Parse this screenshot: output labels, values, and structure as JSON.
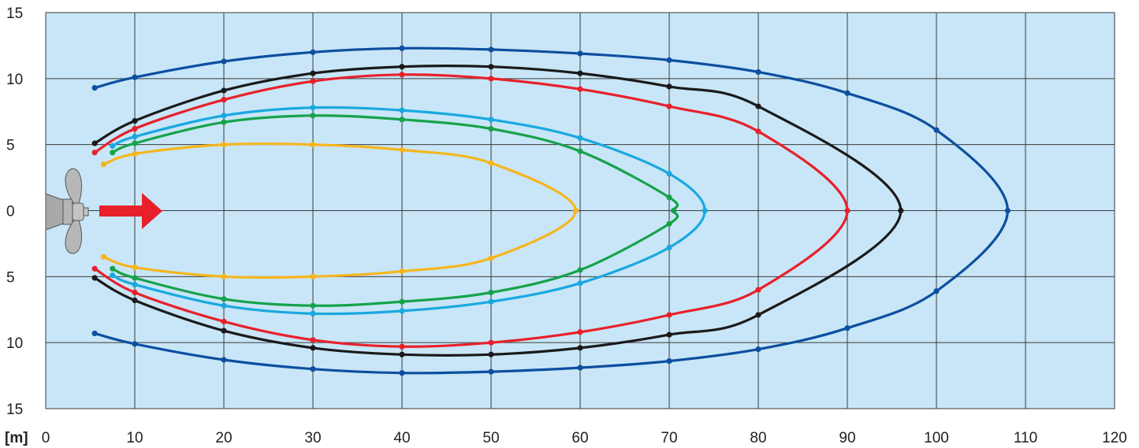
{
  "chart_data": {
    "type": "line",
    "xlabel": "[m]",
    "ylabel": "",
    "xlim": [
      0,
      120
    ],
    "ylim": [
      -15,
      15
    ],
    "x_ticks": [
      "0",
      "10",
      "20",
      "30",
      "40",
      "50",
      "60",
      "70",
      "80",
      "90",
      "100",
      "110",
      "120"
    ],
    "y_ticks": [
      "15",
      "10",
      "5",
      "0",
      "5",
      "10",
      "15"
    ],
    "y_tick_values": [
      15,
      10,
      5,
      0,
      -5,
      -10,
      -15
    ],
    "grid": true,
    "legend": "none",
    "plot_background": "#c8e6f7",
    "series": [
      {
        "color": "#0d4fa0",
        "upper": [
          [
            5.5,
            9.3
          ],
          [
            10,
            10.1
          ],
          [
            20,
            11.3
          ],
          [
            30,
            12.0
          ],
          [
            40,
            12.3
          ],
          [
            50,
            12.2
          ],
          [
            60,
            11.9
          ],
          [
            70,
            11.4
          ],
          [
            80,
            10.5
          ],
          [
            90,
            8.9
          ],
          [
            100,
            6.1
          ],
          [
            108,
            0
          ]
        ],
        "lower": [
          [
            5.5,
            -9.3
          ],
          [
            10,
            -10.1
          ],
          [
            20,
            -11.3
          ],
          [
            30,
            -12.0
          ],
          [
            40,
            -12.3
          ],
          [
            50,
            -12.2
          ],
          [
            60,
            -11.9
          ],
          [
            70,
            -11.4
          ],
          [
            80,
            -10.5
          ],
          [
            90,
            -8.9
          ],
          [
            100,
            -6.1
          ]
        ]
      },
      {
        "color": "#1a1a1a",
        "upper": [
          [
            5.5,
            5.1
          ],
          [
            10,
            6.8
          ],
          [
            20,
            9.1
          ],
          [
            30,
            10.4
          ],
          [
            40,
            10.9
          ],
          [
            50,
            10.9
          ],
          [
            60,
            10.4
          ],
          [
            70,
            9.4
          ],
          [
            80,
            7.9
          ],
          [
            96,
            0
          ]
        ],
        "lower": [
          [
            5.5,
            -5.1
          ],
          [
            10,
            -6.8
          ],
          [
            20,
            -9.1
          ],
          [
            30,
            -10.4
          ],
          [
            40,
            -10.9
          ],
          [
            50,
            -10.9
          ],
          [
            60,
            -10.4
          ],
          [
            70,
            -9.4
          ],
          [
            80,
            -7.9
          ]
        ]
      },
      {
        "color": "#e8202a",
        "upper": [
          [
            5.5,
            4.4
          ],
          [
            10,
            6.2
          ],
          [
            20,
            8.4
          ],
          [
            30,
            9.8
          ],
          [
            40,
            10.3
          ],
          [
            50,
            10.0
          ],
          [
            60,
            9.2
          ],
          [
            70,
            7.9
          ],
          [
            80,
            6.0
          ],
          [
            90,
            0
          ]
        ],
        "lower": [
          [
            5.5,
            -4.4
          ],
          [
            10,
            -6.2
          ],
          [
            20,
            -8.4
          ],
          [
            30,
            -9.8
          ],
          [
            40,
            -10.3
          ],
          [
            50,
            -10.0
          ],
          [
            60,
            -9.2
          ],
          [
            70,
            -7.9
          ],
          [
            80,
            -6.0
          ]
        ]
      },
      {
        "color": "#1aa8e0",
        "upper": [
          [
            7.5,
            4.9
          ],
          [
            10,
            5.6
          ],
          [
            20,
            7.2
          ],
          [
            30,
            7.8
          ],
          [
            40,
            7.6
          ],
          [
            50,
            6.9
          ],
          [
            60,
            5.5
          ],
          [
            70,
            2.8
          ],
          [
            74,
            0
          ]
        ],
        "lower": [
          [
            7.5,
            -4.9
          ],
          [
            10,
            -5.6
          ],
          [
            20,
            -7.2
          ],
          [
            30,
            -7.8
          ],
          [
            40,
            -7.6
          ],
          [
            50,
            -6.9
          ],
          [
            60,
            -5.5
          ],
          [
            70,
            -2.8
          ]
        ]
      },
      {
        "color": "#17a24a",
        "upper": [
          [
            7.5,
            4.4
          ],
          [
            10,
            5.1
          ],
          [
            20,
            6.7
          ],
          [
            30,
            7.2
          ],
          [
            40,
            6.9
          ],
          [
            50,
            6.2
          ],
          [
            60,
            4.5
          ],
          [
            70,
            1.0
          ],
          [
            70.5,
            0
          ]
        ],
        "lower": [
          [
            7.5,
            -4.4
          ],
          [
            10,
            -5.1
          ],
          [
            20,
            -6.7
          ],
          [
            30,
            -7.2
          ],
          [
            40,
            -6.9
          ],
          [
            50,
            -6.2
          ],
          [
            60,
            -4.5
          ],
          [
            70,
            -1.0
          ]
        ]
      },
      {
        "color": "#f7b51c",
        "upper": [
          [
            6.5,
            3.5
          ],
          [
            10,
            4.3
          ],
          [
            20,
            5.0
          ],
          [
            30,
            5.0
          ],
          [
            40,
            4.6
          ],
          [
            50,
            3.6
          ],
          [
            59.5,
            0
          ]
        ],
        "lower": [
          [
            6.5,
            -3.5
          ],
          [
            10,
            -4.3
          ],
          [
            20,
            -5.0
          ],
          [
            30,
            -5.0
          ],
          [
            40,
            -4.6
          ],
          [
            50,
            -3.6
          ]
        ]
      }
    ]
  },
  "icons": {
    "propeller": "propeller-icon",
    "thrust_arrow": "thrust-arrow-icon",
    "arrow_color": "#e8202a",
    "propeller_color": "#a9a9a9"
  }
}
